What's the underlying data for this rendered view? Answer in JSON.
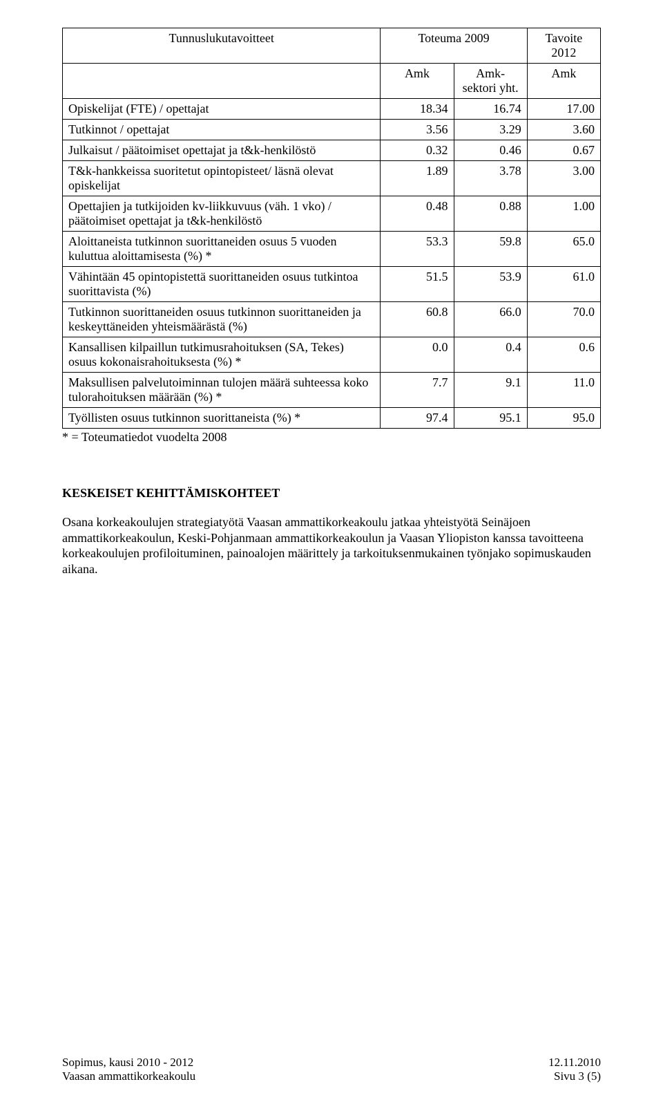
{
  "table": {
    "headers": {
      "col1": "Tunnuslukutavoitteet",
      "col2": "Toteuma 2009",
      "col3": "Tavoite 2012",
      "sub_amk": "Amk",
      "sub_sektori": "Amk-sektori yht.",
      "sub_amk2": "Amk"
    },
    "rows": [
      {
        "label": "Opiskelijat (FTE) / opettajat",
        "v1": "18.34",
        "v2": "16.74",
        "v3": "17.00"
      },
      {
        "label": "Tutkinnot / opettajat",
        "v1": "3.56",
        "v2": "3.29",
        "v3": "3.60"
      },
      {
        "label": "Julkaisut / päätoimiset opettajat ja t&k-henkilöstö",
        "v1": "0.32",
        "v2": "0.46",
        "v3": "0.67"
      },
      {
        "label": "T&k-hankkeissa suoritetut opintopisteet/ läsnä olevat opiskelijat",
        "v1": "1.89",
        "v2": "3.78",
        "v3": "3.00"
      },
      {
        "label": "Opettajien ja tutkijoiden kv-liikkuvuus (väh. 1 vko) / päätoimiset opettajat ja t&k-henkilöstö",
        "v1": "0.48",
        "v2": "0.88",
        "v3": "1.00"
      },
      {
        "label": "Aloittaneista tutkinnon suorittaneiden osuus 5 vuoden kuluttua aloittamisesta (%) *",
        "v1": "53.3",
        "v2": "59.8",
        "v3": "65.0"
      },
      {
        "label": "Vähintään 45 opintopistettä suorittaneiden osuus tutkintoa suorittavista (%)",
        "v1": "51.5",
        "v2": "53.9",
        "v3": "61.0"
      },
      {
        "label": "Tutkinnon suorittaneiden osuus tutkinnon suorittaneiden ja keskeyttäneiden yhteismäärästä (%)",
        "v1": "60.8",
        "v2": "66.0",
        "v3": "70.0"
      },
      {
        "label": "Kansallisen kilpaillun tutkimusrahoituksen (SA, Tekes) osuus kokonaisrahoituksesta (%) *",
        "v1": "0.0",
        "v2": "0.4",
        "v3": "0.6"
      },
      {
        "label": "Maksullisen palvelutoiminnan tulojen määrä suhteessa koko tulorahoituksen määrään (%) *",
        "v1": "7.7",
        "v2": "9.1",
        "v3": "11.0"
      },
      {
        "label": "Työllisten osuus tutkinnon suorittaneista (%) *",
        "v1": "97.4",
        "v2": "95.1",
        "v3": "95.0"
      }
    ]
  },
  "footnote": "* = Toteumatiedot vuodelta 2008",
  "section_title": "KESKEISET KEHITTÄMISKOHTEET",
  "paragraph": "Osana korkeakoulujen strategiatyötä Vaasan ammattikorkeakoulu jatkaa yhteistyötä Seinäjoen ammattikorkeakoulun, Keski-Pohjanmaan ammattikorkeakoulun ja Vaasan Yliopiston kanssa tavoitteena korkeakoulujen profiloituminen, painoalojen määrittely ja tarkoituksenmukainen työnjako sopimuskauden aikana.",
  "footer": {
    "left1": "Sopimus, kausi 2010 - 2012",
    "left2": "Vaasan ammattikorkeakoulu",
    "right1": "12.11.2010",
    "right2": "Sivu 3 (5)"
  }
}
